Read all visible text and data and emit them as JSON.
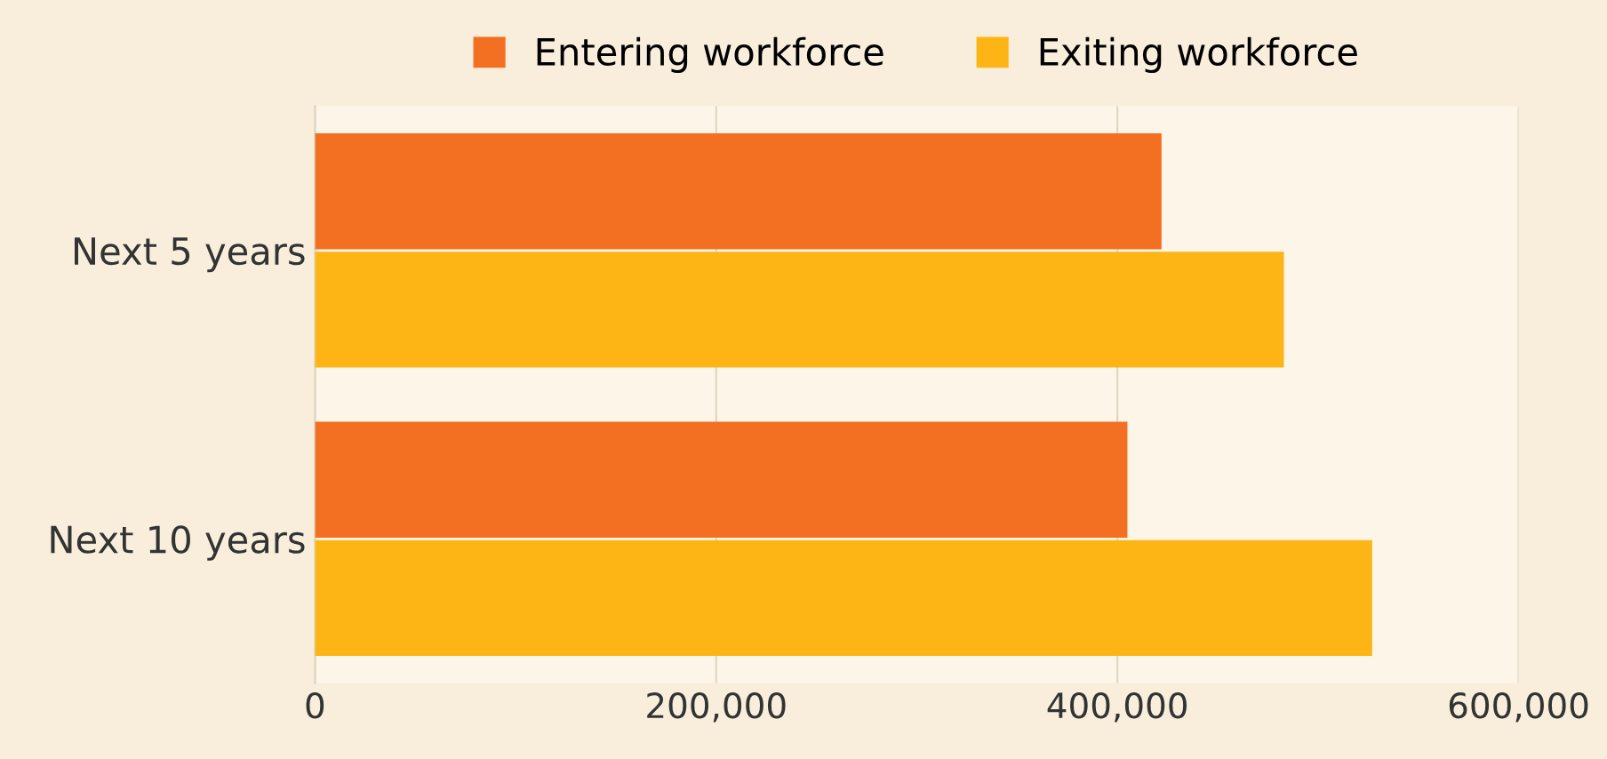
{
  "chart_data": {
    "type": "bar",
    "orientation": "horizontal",
    "categories": [
      "Next 5 years",
      "Next 10 years"
    ],
    "series": [
      {
        "name": "Entering workforce",
        "color": "#f36f21",
        "values": [
          422000,
          405000
        ]
      },
      {
        "name": "Exiting workforce",
        "color": "#fdb515",
        "values": [
          483000,
          527000
        ]
      }
    ],
    "xlim": [
      0,
      600000
    ],
    "xticks": [
      {
        "value": 0,
        "label": "0"
      },
      {
        "value": 200000,
        "label": "200,000"
      },
      {
        "value": 400000,
        "label": "400,000"
      },
      {
        "value": 600000,
        "label": "600,000"
      }
    ],
    "grid": "x",
    "legend": "top"
  }
}
